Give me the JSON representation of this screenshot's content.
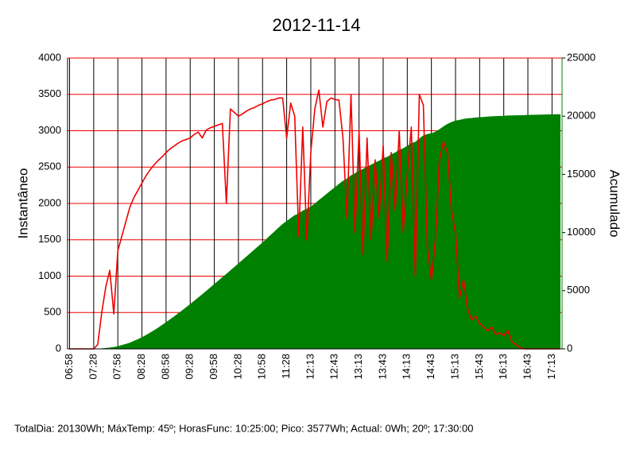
{
  "chart_data": {
    "type": "line-area",
    "title": "2012-11-14",
    "ylabel": "Instantâneo",
    "y2label": "Acumulado",
    "footer": "TotalDia: 20130Wh; MáxTemp: 45º; HorasFunc: 10:25:00; Pico: 3577Wh; Actual: 0Wh; 20º; 17:30:00",
    "categories": [
      "06:58",
      null,
      null,
      null,
      null,
      null,
      "07:28",
      null,
      null,
      null,
      null,
      null,
      "07:58",
      null,
      null,
      null,
      null,
      null,
      "08:28",
      null,
      null,
      null,
      null,
      null,
      "08:58",
      null,
      null,
      null,
      null,
      null,
      "09:28",
      null,
      null,
      null,
      null,
      null,
      "09:58",
      null,
      null,
      null,
      null,
      null,
      "10:28",
      null,
      null,
      null,
      null,
      null,
      "10:58",
      null,
      null,
      null,
      null,
      null,
      "11:28",
      null,
      null,
      null,
      null,
      null,
      "12:13",
      null,
      null,
      null,
      null,
      null,
      "12:43",
      null,
      null,
      null,
      null,
      null,
      "13:13",
      null,
      null,
      null,
      null,
      null,
      "13:43",
      null,
      null,
      null,
      null,
      null,
      "14:13",
      null,
      null,
      null,
      null,
      null,
      "14:43",
      null,
      null,
      null,
      null,
      null,
      "15:13",
      null,
      null,
      null,
      null,
      null,
      "15:43",
      null,
      null,
      null,
      null,
      null,
      "16:13",
      null,
      null,
      null,
      null,
      null,
      "16:43",
      null,
      null,
      null,
      null,
      null,
      "17:13",
      null,
      null
    ],
    "series": [
      {
        "color": "#ee0000",
        "values": [
          0,
          0,
          0,
          0,
          0,
          0,
          0,
          60,
          500,
          850,
          1080,
          480,
          1350,
          1550,
          1750,
          1950,
          2080,
          2180,
          2280,
          2380,
          2460,
          2530,
          2590,
          2640,
          2700,
          2750,
          2790,
          2830,
          2860,
          2880,
          2900,
          2950,
          2980,
          2900,
          3010,
          3040,
          3060,
          3080,
          3100,
          2000,
          3300,
          3250,
          3200,
          3230,
          3270,
          3300,
          3320,
          3350,
          3370,
          3400,
          3420,
          3430,
          3450,
          3450,
          2900,
          3380,
          3200,
          1550,
          3050,
          1500,
          2700,
          3300,
          3560,
          3050,
          3400,
          3450,
          3430,
          3420,
          2900,
          1800,
          3500,
          1600,
          3000,
          1300,
          2900,
          1500,
          2600,
          1800,
          2800,
          1200,
          2700,
          1900,
          3000,
          1600,
          2400,
          3050,
          1000,
          3500,
          3350,
          1400,
          950,
          1500,
          2600,
          2850,
          2700,
          1900,
          1600,
          700,
          950,
          550,
          400,
          450,
          350,
          300,
          250,
          300,
          200,
          220,
          180,
          250,
          100,
          60,
          20,
          0,
          0,
          0,
          0,
          0,
          0,
          0,
          0,
          0,
          0
        ]
      },
      {
        "color": "#008000",
        "axis": "y2",
        "values": [
          0,
          0,
          0,
          0,
          0,
          0,
          0,
          0,
          10,
          40,
          80,
          130,
          200,
          290,
          390,
          500,
          650,
          800,
          970,
          1150,
          1350,
          1560,
          1780,
          2010,
          2250,
          2500,
          2750,
          3010,
          3270,
          3540,
          3810,
          4090,
          4370,
          4650,
          4940,
          5230,
          5530,
          5820,
          6120,
          6400,
          6700,
          7000,
          7300,
          7600,
          7900,
          8200,
          8500,
          8800,
          9100,
          9420,
          9740,
          10060,
          10380,
          10700,
          10950,
          11200,
          11450,
          11600,
          11850,
          12000,
          12200,
          12450,
          12750,
          13020,
          13300,
          13580,
          13860,
          14140,
          14400,
          14600,
          14880,
          15050,
          15300,
          15420,
          15650,
          15780,
          15990,
          16130,
          16360,
          16460,
          16680,
          16840,
          17080,
          17210,
          17410,
          17660,
          17750,
          18040,
          18310,
          18430,
          18500,
          18630,
          18840,
          19080,
          19300,
          19460,
          19590,
          19650,
          19730,
          19780,
          19810,
          19850,
          19880,
          19900,
          19930,
          19950,
          19970,
          19990,
          20000,
          20020,
          20030,
          20040,
          20050,
          20060,
          20070,
          20080,
          20090,
          20100,
          20110,
          20120,
          20125,
          20130,
          20130
        ]
      }
    ],
    "ylim": [
      0,
      4000
    ],
    "yticks": [
      0,
      500,
      1000,
      1500,
      2000,
      2500,
      3000,
      3500,
      4000
    ],
    "y2lim": [
      0,
      25000
    ],
    "y2ticks": [
      0,
      5000,
      10000,
      15000,
      20000,
      25000
    ],
    "grid": true,
    "grid_color": "#ee0000",
    "vgrid_color": "#000000"
  }
}
